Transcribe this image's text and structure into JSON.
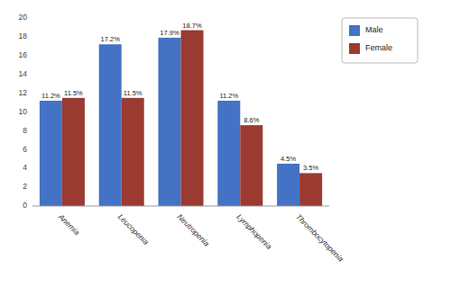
{
  "chart_data": {
    "type": "bar",
    "categories": [
      "Anemia",
      "Leucopenia",
      "Neutropenia",
      "Lymphopenia",
      "Thrombocytopenia"
    ],
    "series": [
      {
        "name": "Male",
        "color": "#4472C4",
        "values": [
          11.2,
          17.2,
          17.9,
          11.2,
          4.5
        ],
        "value_labels": [
          "11.2%",
          "17.2%",
          "17.9%",
          "11.2%",
          "4.5%"
        ]
      },
      {
        "name": "Female",
        "color": "#9B3A31",
        "values": [
          11.5,
          11.5,
          18.7,
          8.6,
          3.5
        ],
        "value_labels": [
          "11.5%",
          "11.5%",
          "18.7%",
          "8.6%",
          "3.5%"
        ]
      }
    ],
    "ylim": [
      0,
      20
    ],
    "yticks": [
      0,
      2,
      4,
      6,
      8,
      10,
      12,
      14,
      16,
      18,
      20
    ],
    "grid": false,
    "legend": "right",
    "data_labels": true
  }
}
